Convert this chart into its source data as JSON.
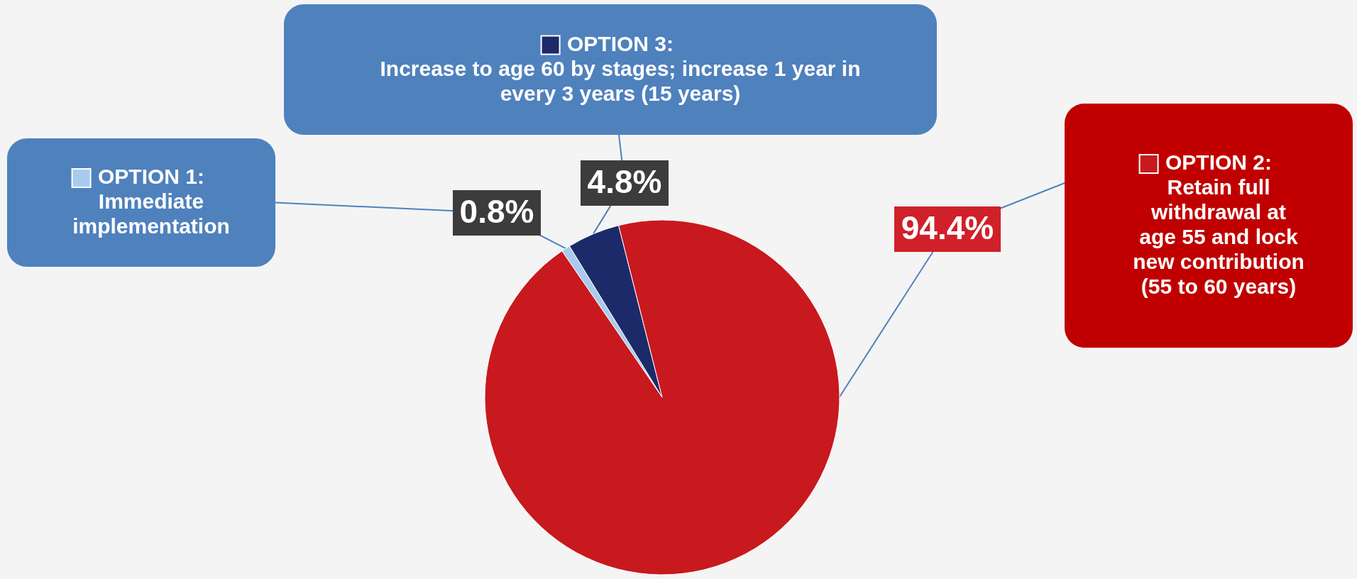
{
  "chart_data": {
    "type": "pie",
    "categories": [
      "OPTION 1: Immediate implementation",
      "OPTION 3: Increase to age 60 by stages; increase 1 year in every 3 years (15 years)",
      "OPTION 2: Retain full withdrawal at age 55 and lock new contribution (55 to 60 years)"
    ],
    "values": [
      0.8,
      4.8,
      94.4
    ],
    "colors": [
      "#a9cbee",
      "#1c2a6a",
      "#c8191f"
    ],
    "value_labels": [
      "0.8%",
      "4.8%",
      "94.4%"
    ],
    "legend": "top"
  }
}
